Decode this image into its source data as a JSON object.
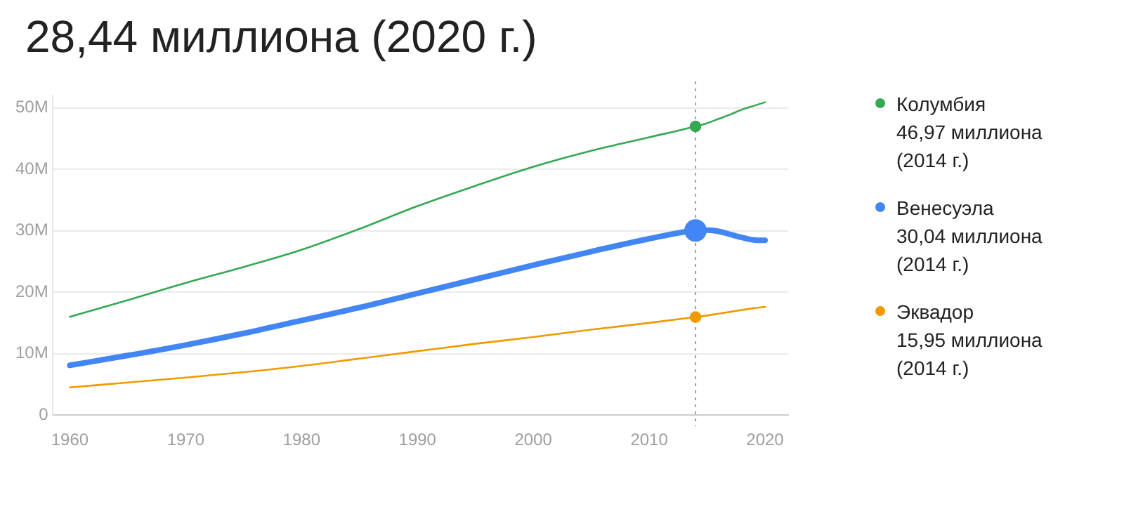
{
  "chart_data": {
    "type": "line",
    "title": "28,44 миллиона (2020 г.)",
    "x": [
      1960,
      1965,
      1970,
      1975,
      1980,
      1985,
      1990,
      1995,
      2000,
      2005,
      2010,
      2014,
      2015,
      2016,
      2017,
      2018,
      2019,
      2020
    ],
    "series": [
      {
        "name": "Колумбия",
        "color": "#34a853",
        "values": [
          16.0,
          18.7,
          21.5,
          24.1,
          26.9,
          30.3,
          34.0,
          37.3,
          40.4,
          43.0,
          45.2,
          46.97,
          47.5,
          48.2,
          48.9,
          49.7,
          50.3,
          50.9
        ]
      },
      {
        "name": "Венесуэла",
        "color": "#4285f4",
        "values": [
          8.1,
          9.7,
          11.4,
          13.3,
          15.4,
          17.5,
          19.8,
          22.1,
          24.4,
          26.6,
          28.7,
          30.04,
          30.1,
          29.9,
          29.4,
          28.9,
          28.5,
          28.44
        ]
      },
      {
        "name": "Эквадор",
        "color": "#f29900",
        "values": [
          4.5,
          5.3,
          6.1,
          7.0,
          8.0,
          9.2,
          10.4,
          11.6,
          12.7,
          13.9,
          15.0,
          15.95,
          16.2,
          16.5,
          16.8,
          17.1,
          17.4,
          17.6
        ]
      }
    ],
    "annotations": [
      "46,97 миллиона (2014 г.)",
      "30,04 миллиона (2014 г.)",
      "15,95 миллиона (2014 г.)"
    ],
    "ref_lines": [
      {
        "axis": "x",
        "value": 2014,
        "color": "#9e9e9e",
        "line_style": "dotted"
      }
    ],
    "xlim": [
      1958.5,
      2022
    ],
    "xticks": [
      1960,
      1970,
      1980,
      1990,
      2000,
      2010,
      2020
    ],
    "ylim": [
      0,
      52
    ],
    "yticks": [
      {
        "value": 0,
        "label": "0"
      },
      {
        "value": 10,
        "label": "10M"
      },
      {
        "value": 20,
        "label": "20M"
      },
      {
        "value": 30,
        "label": "30M"
      },
      {
        "value": 40,
        "label": "40M"
      },
      {
        "value": 50,
        "label": "50M"
      }
    ],
    "grid": "y",
    "legend": "right",
    "marker": "none",
    "line_style": "solid"
  }
}
